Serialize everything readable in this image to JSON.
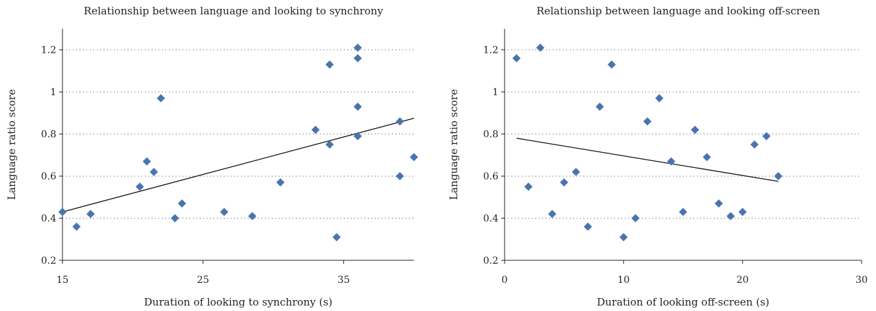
{
  "chart_data": [
    {
      "type": "scatter",
      "title": "Relationship between language and looking to synchrony",
      "xlabel": "Duration of looking to synchrony (s)",
      "ylabel": "Language ratio score",
      "xlim": [
        15,
        40
      ],
      "ylim": [
        0.2,
        1.3
      ],
      "xticks": [
        15,
        25,
        35
      ],
      "yticks": [
        0.2,
        0.4,
        0.6,
        0.8,
        1,
        1.2
      ],
      "grid": "horizontal dotted",
      "color": "#4a74b0",
      "points": [
        [
          15,
          0.43
        ],
        [
          16,
          0.36
        ],
        [
          17,
          0.42
        ],
        [
          20.5,
          0.55
        ],
        [
          21,
          0.67
        ],
        [
          21.5,
          0.62
        ],
        [
          22,
          0.97
        ],
        [
          23,
          0.4
        ],
        [
          23.5,
          0.47
        ],
        [
          26.5,
          0.43
        ],
        [
          28.5,
          0.41
        ],
        [
          30.5,
          0.57
        ],
        [
          33,
          0.82
        ],
        [
          34,
          1.13
        ],
        [
          34,
          0.75
        ],
        [
          34.5,
          0.31
        ],
        [
          36,
          1.21
        ],
        [
          36,
          1.16
        ],
        [
          36,
          0.93
        ],
        [
          36,
          0.79
        ],
        [
          39,
          0.86
        ],
        [
          39,
          0.6
        ],
        [
          40,
          0.69
        ]
      ],
      "trendline": [
        [
          15,
          0.43
        ],
        [
          40,
          0.875
        ]
      ]
    },
    {
      "type": "scatter",
      "title": "Relationship between language and looking off-screen",
      "xlabel": "Duration of looking off-screen (s)",
      "ylabel": "Language ratio score",
      "xlim": [
        0,
        30
      ],
      "ylim": [
        0.2,
        1.3
      ],
      "xticks": [
        0,
        10,
        20,
        30
      ],
      "yticks": [
        0.2,
        0.4,
        0.6,
        0.8,
        1,
        1.2
      ],
      "grid": "horizontal dotted",
      "color": "#4a74b0",
      "points": [
        [
          1,
          1.16
        ],
        [
          2,
          0.55
        ],
        [
          3,
          1.21
        ],
        [
          4,
          0.42
        ],
        [
          5,
          0.57
        ],
        [
          6,
          0.62
        ],
        [
          7,
          0.36
        ],
        [
          8,
          0.93
        ],
        [
          9,
          1.13
        ],
        [
          10,
          0.31
        ],
        [
          11,
          0.4
        ],
        [
          12,
          0.86
        ],
        [
          13,
          0.97
        ],
        [
          14,
          0.67
        ],
        [
          15,
          0.43
        ],
        [
          16,
          0.82
        ],
        [
          17,
          0.69
        ],
        [
          18,
          0.47
        ],
        [
          19,
          0.41
        ],
        [
          20,
          0.43
        ],
        [
          21,
          0.75
        ],
        [
          22,
          0.79
        ],
        [
          23,
          0.6
        ]
      ],
      "trendline": [
        [
          1,
          0.78
        ],
        [
          23,
          0.575
        ]
      ]
    }
  ]
}
